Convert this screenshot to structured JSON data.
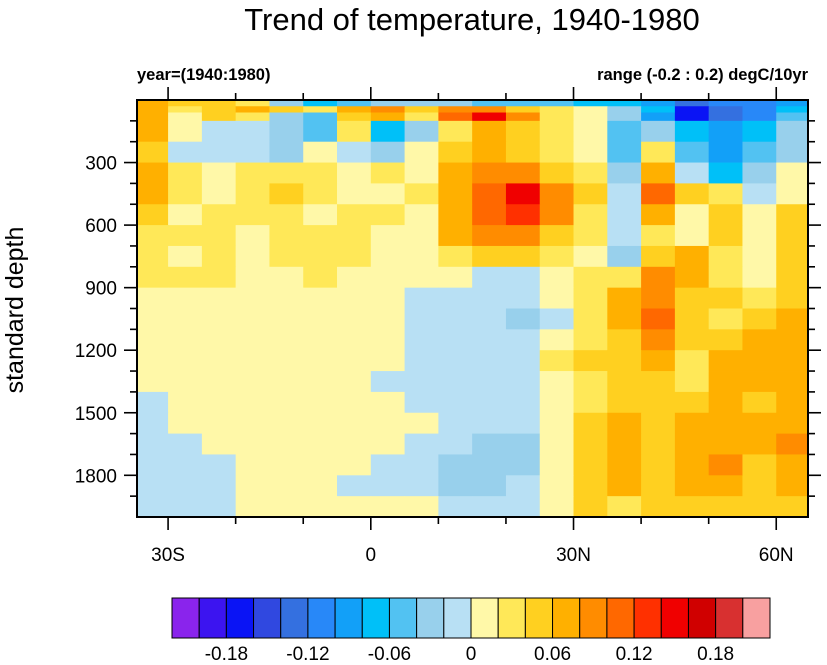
{
  "chart_data": {
    "type": "heatmap",
    "title": "Trend of temperature, 1940-1980",
    "left_subtitle": "year=(1940:1980)",
    "right_subtitle": "range (-0.2 : 0.2) degC/10yr",
    "ylabel": "standard depth",
    "xlabel": "",
    "xlim": [
      -34.6,
      64.7
    ],
    "ylim": [
      2000,
      0
    ],
    "x_ticks": [
      {
        "value": -30,
        "label": "30S"
      },
      {
        "value": 0,
        "label": "0"
      },
      {
        "value": 30,
        "label": "30N"
      },
      {
        "value": 60,
        "label": "60N"
      }
    ],
    "x_minor_step": 10,
    "y_ticks": [
      {
        "value": 300,
        "label": "300"
      },
      {
        "value": 600,
        "label": "600"
      },
      {
        "value": 900,
        "label": "900"
      },
      {
        "value": 1200,
        "label": "1200"
      },
      {
        "value": 1500,
        "label": "1500"
      },
      {
        "value": 1800,
        "label": "1800"
      }
    ],
    "y_minor_step": 100,
    "lat_edges": [
      -34.6,
      -30,
      -25,
      -20,
      -15,
      -10,
      -5,
      0,
      5,
      10,
      15,
      20,
      25,
      30,
      35,
      40,
      45,
      50,
      55,
      60,
      64.7
    ],
    "depth_edges": [
      0,
      30,
      60,
      100,
      200,
      300,
      400,
      500,
      600,
      700,
      800,
      900,
      1000,
      1100,
      1200,
      1300,
      1400,
      1500,
      1600,
      1700,
      1800,
      1900,
      2000
    ],
    "values": [
      [
        0.07,
        0.05,
        0.05,
        0.03,
        -0.03,
        -0.07,
        -0.05,
        -0.03,
        -0.03,
        -0.03,
        -0.05,
        -0.05,
        -0.05,
        -0.07,
        -0.07,
        -0.09,
        -0.13,
        -0.11,
        -0.11,
        -0.09
      ],
      [
        0.07,
        0.03,
        0.05,
        0.07,
        0.05,
        0.03,
        0.07,
        0.09,
        0.05,
        0.09,
        0.09,
        0.05,
        0.03,
        0.01,
        -0.03,
        -0.07,
        -0.17,
        -0.13,
        -0.11,
        -0.07
      ],
      [
        0.07,
        0.01,
        0.05,
        0.03,
        -0.03,
        -0.05,
        0.05,
        0.07,
        0.03,
        0.11,
        0.15,
        0.09,
        0.03,
        0.01,
        -0.03,
        -0.09,
        -0.17,
        -0.13,
        -0.11,
        -0.05
      ],
      [
        0.07,
        0.01,
        -0.01,
        -0.01,
        -0.03,
        -0.05,
        0.03,
        -0.07,
        -0.03,
        0.03,
        0.07,
        0.05,
        0.03,
        0.01,
        -0.05,
        -0.03,
        -0.07,
        -0.09,
        -0.07,
        -0.03
      ],
      [
        0.05,
        -0.01,
        -0.01,
        -0.01,
        -0.03,
        0.01,
        -0.01,
        -0.03,
        0.01,
        0.05,
        0.07,
        0.05,
        0.03,
        0.01,
        -0.05,
        0.03,
        -0.05,
        -0.09,
        -0.05,
        -0.03
      ],
      [
        0.07,
        0.03,
        0.01,
        0.03,
        0.03,
        0.03,
        0.01,
        0.03,
        0.01,
        0.07,
        0.09,
        0.09,
        0.05,
        0.03,
        -0.03,
        0.07,
        -0.01,
        -0.07,
        -0.03,
        0.01
      ],
      [
        0.07,
        0.03,
        0.01,
        0.03,
        0.05,
        0.03,
        0.01,
        0.01,
        0.03,
        0.07,
        0.11,
        0.15,
        0.09,
        0.05,
        -0.01,
        0.11,
        0.05,
        0.03,
        -0.01,
        0.01
      ],
      [
        0.05,
        0.01,
        0.03,
        0.03,
        0.03,
        0.01,
        0.03,
        0.03,
        0.01,
        0.07,
        0.11,
        0.13,
        0.09,
        0.03,
        -0.01,
        0.07,
        0.01,
        0.05,
        0.01,
        0.05
      ],
      [
        0.03,
        0.03,
        0.03,
        0.01,
        0.03,
        0.03,
        0.03,
        0.01,
        0.01,
        0.07,
        0.09,
        0.09,
        0.05,
        0.03,
        -0.01,
        0.03,
        0.01,
        0.05,
        0.01,
        0.05
      ],
      [
        0.03,
        0.01,
        0.03,
        0.01,
        0.03,
        0.03,
        0.03,
        0.01,
        0.01,
        0.03,
        0.05,
        0.05,
        0.03,
        0.01,
        -0.03,
        0.05,
        0.07,
        0.03,
        0.01,
        0.05
      ],
      [
        0.03,
        0.03,
        0.03,
        0.01,
        0.01,
        0.03,
        0.01,
        0.01,
        0.01,
        0.01,
        -0.01,
        -0.01,
        0.01,
        0.03,
        0.03,
        0.09,
        0.07,
        0.03,
        0.01,
        0.05
      ],
      [
        0.01,
        0.01,
        0.01,
        0.01,
        0.01,
        0.01,
        0.01,
        0.01,
        -0.01,
        -0.01,
        -0.01,
        -0.01,
        0.01,
        0.03,
        0.07,
        0.09,
        0.05,
        0.05,
        0.03,
        0.05
      ],
      [
        0.01,
        0.01,
        0.01,
        0.01,
        0.01,
        0.01,
        0.01,
        0.01,
        -0.01,
        -0.01,
        -0.01,
        -0.03,
        -0.01,
        0.03,
        0.07,
        0.11,
        0.05,
        0.03,
        0.05,
        0.07
      ],
      [
        0.01,
        0.01,
        0.01,
        0.01,
        0.01,
        0.01,
        0.01,
        0.01,
        -0.01,
        -0.01,
        -0.01,
        -0.01,
        0.01,
        0.03,
        0.05,
        0.09,
        0.05,
        0.05,
        0.07,
        0.07
      ],
      [
        0.01,
        0.01,
        0.01,
        0.01,
        0.01,
        0.01,
        0.01,
        0.01,
        -0.01,
        -0.01,
        -0.01,
        -0.01,
        0.03,
        0.05,
        0.05,
        0.07,
        0.03,
        0.07,
        0.07,
        0.07
      ],
      [
        0.01,
        0.01,
        0.01,
        0.01,
        0.01,
        0.01,
        0.01,
        -0.01,
        -0.01,
        -0.01,
        -0.01,
        -0.01,
        0.01,
        0.03,
        0.05,
        0.05,
        0.03,
        0.07,
        0.07,
        0.07
      ],
      [
        -0.01,
        0.01,
        0.01,
        0.01,
        0.01,
        0.01,
        0.01,
        0.01,
        -0.01,
        -0.01,
        -0.01,
        -0.01,
        0.01,
        0.03,
        0.05,
        0.05,
        0.05,
        0.07,
        0.05,
        0.07
      ],
      [
        -0.01,
        0.01,
        0.01,
        0.01,
        0.01,
        0.01,
        0.01,
        0.01,
        0.01,
        -0.01,
        -0.01,
        -0.01,
        0.01,
        0.05,
        0.07,
        0.05,
        0.07,
        0.07,
        0.07,
        0.07
      ],
      [
        -0.01,
        -0.01,
        0.01,
        0.01,
        0.01,
        0.01,
        0.01,
        0.01,
        -0.01,
        -0.01,
        -0.03,
        -0.03,
        0.01,
        0.05,
        0.07,
        0.05,
        0.07,
        0.07,
        0.07,
        0.09
      ],
      [
        -0.01,
        -0.01,
        -0.01,
        0.01,
        0.01,
        0.01,
        0.01,
        -0.01,
        -0.01,
        -0.03,
        -0.03,
        -0.03,
        0.01,
        0.05,
        0.07,
        0.05,
        0.07,
        0.09,
        0.05,
        0.07
      ],
      [
        -0.01,
        -0.01,
        -0.01,
        0.01,
        0.01,
        0.01,
        -0.01,
        -0.01,
        -0.01,
        -0.03,
        -0.03,
        -0.01,
        0.01,
        0.05,
        0.07,
        0.05,
        0.07,
        0.07,
        0.05,
        0.07
      ],
      [
        -0.01,
        -0.01,
        -0.01,
        0.01,
        0.01,
        0.01,
        0.01,
        0.01,
        0.01,
        -0.01,
        -0.01,
        -0.01,
        0.01,
        0.05,
        0.03,
        0.05,
        0.05,
        0.05,
        0.05,
        0.05
      ]
    ],
    "colorbar": {
      "min_level": -0.2,
      "level_step": 0.02,
      "colors": [
        "#8a24ec",
        "#3c14f0",
        "#0a14f5",
        "#3048e0",
        "#3470e0",
        "#2888f8",
        "#12a0f8",
        "#00c0f8",
        "#52c2f2",
        "#98d0ec",
        "#b8e0f4",
        "#fff8a8",
        "#ffe858",
        "#ffd020",
        "#ffb000",
        "#ff8c00",
        "#ff6800",
        "#ff3000",
        "#f00000",
        "#d00000",
        "#d83030",
        "#f8a0a0"
      ],
      "tick_labels": [
        {
          "level": -0.18,
          "label": "-0.18"
        },
        {
          "level": -0.12,
          "label": "-0.12"
        },
        {
          "level": -0.06,
          "label": "-0.06"
        },
        {
          "level": 0,
          "label": "0"
        },
        {
          "level": 0.06,
          "label": "0.06"
        },
        {
          "level": 0.12,
          "label": "0.12"
        },
        {
          "level": 0.18,
          "label": "0.18"
        }
      ]
    }
  }
}
